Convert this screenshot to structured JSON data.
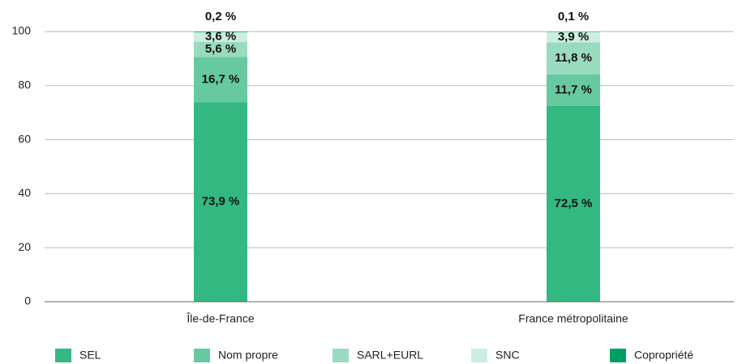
{
  "chart_data": {
    "type": "stacked_bar",
    "categories": [
      "Île-de-France",
      "France métropolitaine"
    ],
    "series": [
      {
        "name": "SEL",
        "color": "#33b882",
        "values": [
          73.9,
          72.5
        ],
        "value_labels": [
          "73,9 %",
          "72,5 %"
        ]
      },
      {
        "name": "Nom propre",
        "color": "#66c9a0",
        "values": [
          16.7,
          11.7
        ],
        "value_labels": [
          "16,7 %",
          "11,7 %"
        ]
      },
      {
        "name": "SARL+EURL",
        "color": "#99dbbf",
        "values": [
          5.6,
          11.8
        ],
        "value_labels": [
          "5,6 %",
          "11,8 %"
        ]
      },
      {
        "name": "SNC",
        "color": "#cceee0",
        "values": [
          3.6,
          3.9
        ],
        "value_labels": [
          "3,6 %",
          "3,9 %"
        ]
      },
      {
        "name": "Copropriété",
        "color": "#00a064",
        "values": [
          0.2,
          0.1
        ],
        "value_labels": [
          "0,2 %",
          "0,1 %"
        ]
      }
    ],
    "ylim": [
      0,
      100
    ],
    "yticks": [
      0,
      20,
      40,
      60,
      80,
      100
    ],
    "grid": true,
    "legend": "bottom"
  }
}
